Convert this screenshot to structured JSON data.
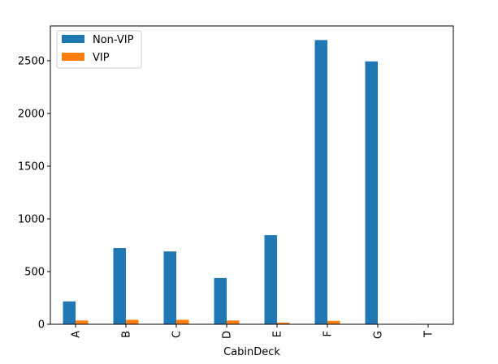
{
  "chart_data": {
    "type": "bar",
    "xlabel": "CabinDeck",
    "ylabel": "",
    "categories": [
      "A",
      "B",
      "C",
      "D",
      "E",
      "F",
      "G",
      "T"
    ],
    "series": [
      {
        "name": "Non-VIP",
        "color": "#1f77b4",
        "values": [
          217,
          723,
          691,
          439,
          845,
          2696,
          2494,
          4
        ]
      },
      {
        "name": "VIP",
        "color": "#ff7f0e",
        "values": [
          36,
          43,
          43,
          36,
          16,
          33,
          0,
          1
        ]
      }
    ],
    "ylim": [
      0,
      2830
    ],
    "yticks": [
      0,
      500,
      1000,
      1500,
      2000,
      2500
    ],
    "grid": false,
    "legend_position": "top-left"
  }
}
